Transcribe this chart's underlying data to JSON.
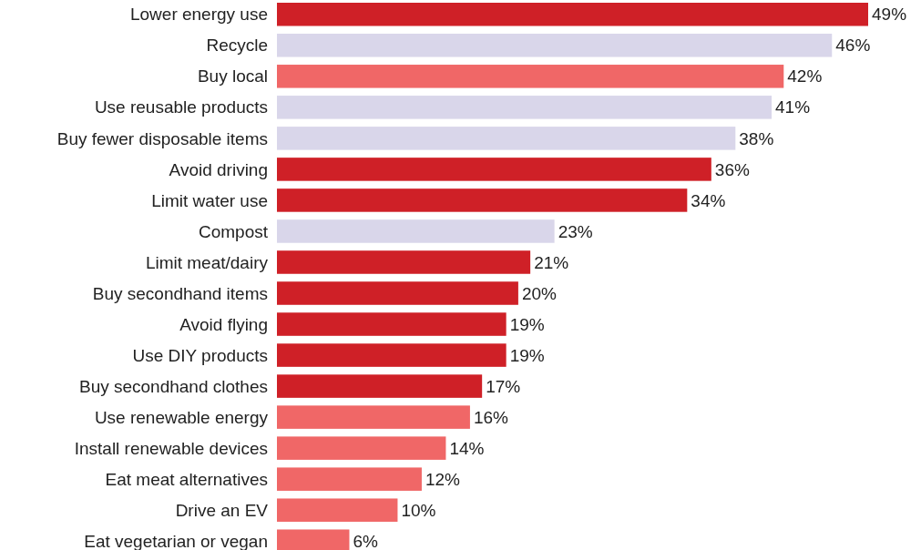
{
  "chart_data": {
    "type": "bar",
    "orientation": "horizontal",
    "categories": [
      "Lower energy use",
      "Recycle",
      "Buy local",
      "Use reusable products",
      "Buy fewer disposable items",
      "Avoid driving",
      "Limit water use",
      "Compost",
      "Limit meat/dairy",
      "Buy secondhand items",
      "Avoid flying",
      "Use DIY products",
      "Buy secondhand clothes",
      "Use renewable energy",
      "Install renewable devices",
      "Eat meat alternatives",
      "Drive an EV",
      "Eat vegetarian or vegan"
    ],
    "values": [
      49,
      46,
      42,
      41,
      38,
      36,
      34,
      23,
      21,
      20,
      19,
      19,
      17,
      16,
      14,
      12,
      10,
      6
    ],
    "value_labels": [
      "49%",
      "46%",
      "42%",
      "41%",
      "38%",
      "36%",
      "34%",
      "23%",
      "21%",
      "20%",
      "19%",
      "19%",
      "17%",
      "16%",
      "14%",
      "12%",
      "10%",
      "6%"
    ],
    "colors": [
      "#cf2027",
      "#d9d6ea",
      "#f06767",
      "#d9d6ea",
      "#d9d6ea",
      "#cf2027",
      "#cf2027",
      "#d9d6ea",
      "#cf2027",
      "#cf2027",
      "#cf2027",
      "#cf2027",
      "#cf2027",
      "#f06767",
      "#f06767",
      "#f06767",
      "#f06767",
      "#f06767"
    ]
  }
}
